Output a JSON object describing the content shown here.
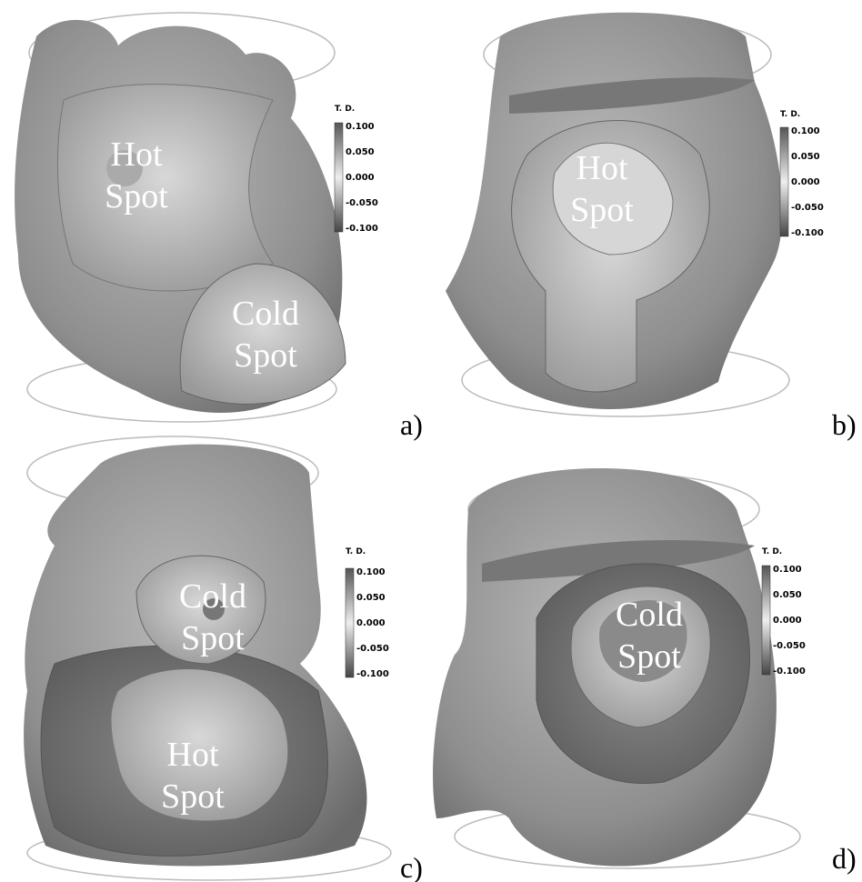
{
  "panels": [
    {
      "label": "a)",
      "annotations": [
        [
          "Hot",
          "Spot"
        ],
        [
          "Cold",
          "Spot"
        ]
      ],
      "colorbar": {
        "title": "T. D.",
        "ticks": [
          "0.100",
          "0.050",
          "0.000",
          "-0.050",
          "-0.100"
        ]
      }
    },
    {
      "label": "b)",
      "annotations": [
        [
          "Hot",
          "Spot"
        ]
      ],
      "colorbar": {
        "title": "T. D.",
        "ticks": [
          "0.100",
          "0.050",
          "0.000",
          "-0.050",
          "-0.100"
        ]
      }
    },
    {
      "label": "c)",
      "annotations": [
        [
          "Cold",
          "Spot"
        ],
        [
          "Hot",
          "Spot"
        ]
      ],
      "colorbar": {
        "title": "T. D.",
        "ticks": [
          "0.100",
          "0.050",
          "0.000",
          "-0.050",
          "-0.100"
        ]
      }
    },
    {
      "label": "d)",
      "annotations": [
        [
          "Cold",
          "Spot"
        ]
      ],
      "colorbar": {
        "title": "T. D.",
        "ticks": [
          "0.100",
          "0.050",
          "0.000",
          "-0.050",
          "-0.100"
        ]
      }
    }
  ]
}
